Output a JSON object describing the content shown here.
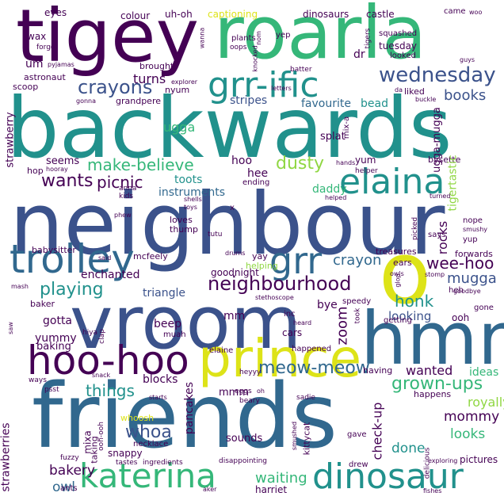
{
  "colors": {
    "purple": "#440154",
    "indigo": "#3b528b",
    "teal": "#21918c",
    "steel": "#31688e",
    "green": "#35b779",
    "lime": "#90d743",
    "yellow": "#dde318",
    "ink": "#482878"
  },
  "words": {
    "tigey": "tigey",
    "roarla": "roarla",
    "backwards": "backwards",
    "neighbour": "neighbour",
    "vroom": "vroom",
    "hmm": "hmm",
    "friends": "friends",
    "o": "o",
    "prince": "prince",
    "hoo_hoo": "hoo-hoo",
    "trolley": "trolley",
    "katerina": "katerina",
    "dinosaur": "dinosaur",
    "elaina": "elaina",
    "grr_ific": "grr-ific",
    "grr": "grr",
    "wednesday": "wednesday",
    "neighbourhood": "neighbourhood",
    "crayons": "crayons",
    "make_believe": "make-believe",
    "playing": "playing",
    "meow_meow": "meow-meow",
    "grown_ups": "grown-ups",
    "whoa": "whoa",
    "things": "things",
    "dusty": "dusty",
    "wants": "wants",
    "picnic": "picnic",
    "wee_hoo": "wee-hoo",
    "honk": "honk",
    "mugga": "mugga",
    "crayon": "crayon",
    "books": "books",
    "stripes": "stripes",
    "turns": "turns",
    "ugga": "ugga",
    "favourite": "favourite",
    "bead": "bead",
    "toots": "toots",
    "instruments": "instruments",
    "enchanted": "enchanted",
    "triangle": "triangle",
    "goodnight": "goodnight",
    "waiting": "waiting",
    "bakery": "bakery",
    "owl": "owl",
    "done": "done",
    "mommy": "mommy",
    "looks": "looks",
    "royally": "royally",
    "wanted": "wanted",
    "ideas": "ideas",
    "looking": "looking",
    "gotta": "gotta",
    "yummy": "yummy",
    "baking": "baking",
    "beep": "beep",
    "mm": "mm",
    "blocks": "blocks",
    "mmm": "mmm",
    "eyes": "eyes",
    "colour": "colour",
    "uh_oh": "uh-oh",
    "captioning": "captioning",
    "dinosaurs": "dinosaurs",
    "castle": "castle",
    "came": "came",
    "woo": "woo",
    "wax": "wax",
    "wanna": "wanna",
    "nom": "nom",
    "plants": "plants",
    "oops": "oops",
    "yep": "yep",
    "squashed": "squashed",
    "forgot": "forgot",
    "um": "um",
    "brought": "brought",
    "dr": "dr",
    "tuesday": "tuesday",
    "looked": "looked",
    "pyjamas": "pyjamas",
    "astronaut": "astronaut",
    "scoop": "scoop",
    "explorer": "explorer",
    "batter": "batter",
    "guys": "guys",
    "grandpere": "grandpere",
    "nyum": "nyum",
    "letters": "letters",
    "liked": "liked",
    "buckle": "buckle",
    "da": "da",
    "gonna": "gonna",
    "strawberry": "strawberry",
    "hop": "hop",
    "hooray": "hooray",
    "seems": "seems",
    "hoo": "hoo",
    "hee": "hee",
    "shells": "shells",
    "mix_a": "mix-a",
    "splat": "splat",
    "yum": "yum",
    "helper": "helper",
    "hands": "hands",
    "bysette": "bysette",
    "forwards": "forwards",
    "tigertastic": "tigertastic",
    "ugga_mugga": "ugga-mugga",
    "ending": "ending",
    "daddy": "daddy",
    "helped": "helped",
    "anna": "anna",
    "kids": "kids",
    "toys": "toys",
    "phew": "phew",
    "loves": "loves",
    "thump": "thump",
    "tutu": "tutu",
    "x": "x",
    "rocks": "rocks",
    "nope": "nope",
    "smushy": "smushy",
    "yup": "yup",
    "says": "says",
    "turned": "turned",
    "picked": "picked",
    "babysitter": "babysitter",
    "mcfeely": "mcfeely",
    "treasures": "treasures",
    "ears": "ears",
    "yay": "yay",
    "helping": "helping",
    "drums": "drums",
    "said": "said",
    "glop": "glop",
    "stomp": "stomp",
    "heh": "heh",
    "goodbye": "goodbye",
    "mash": "mash",
    "stethoscope": "stethoscope",
    "owls": "owls",
    "bye": "bye",
    "speedy": "speedy",
    "baker": "baker",
    "gone": "gone",
    "getting": "getting",
    "ooh": "ooh",
    "inc": "inc",
    "took": "took",
    "hiya": "hiya",
    "muah": "muah",
    "heard": "heard",
    "cars": "cars",
    "happened": "happened",
    "elaine": "elaine",
    "clap": "clap",
    "saw": "saw",
    "having": "having",
    "heyyy": "heyyy",
    "snack": "snack",
    "ways": "ways",
    "psst": "psst",
    "starts": "starts",
    "pancakes": "pancakes",
    "eggs": "eggs",
    "oh": "oh",
    "beary": "beary",
    "sadie": "sadie",
    "happens": "happens",
    "check_up": "check-up",
    "strawberries": "strawberries",
    "whoosh": "whoosh",
    "mixa": "mixa",
    "taking": "taking",
    "ooh_ooh": "ooh-ooh",
    "snappy": "snappy",
    "necklace": "necklace",
    "sounds": "sounds",
    "smushed": "smushed",
    "kittycat": "kittycat",
    "gave": "gave",
    "pictures": "pictures",
    "fuzzy": "fuzzy",
    "tastes": "tastes",
    "ingredients": "ingredients",
    "disappointing": "disappointing",
    "drew": "drew",
    "delicious": "delicious",
    "exploring": "exploring",
    "ants": "ants",
    "harriet": "harriet",
    "fishes": "fishes",
    "aker": "aker",
    "knocked": "knocked",
    "tigers": "tigers"
  }
}
